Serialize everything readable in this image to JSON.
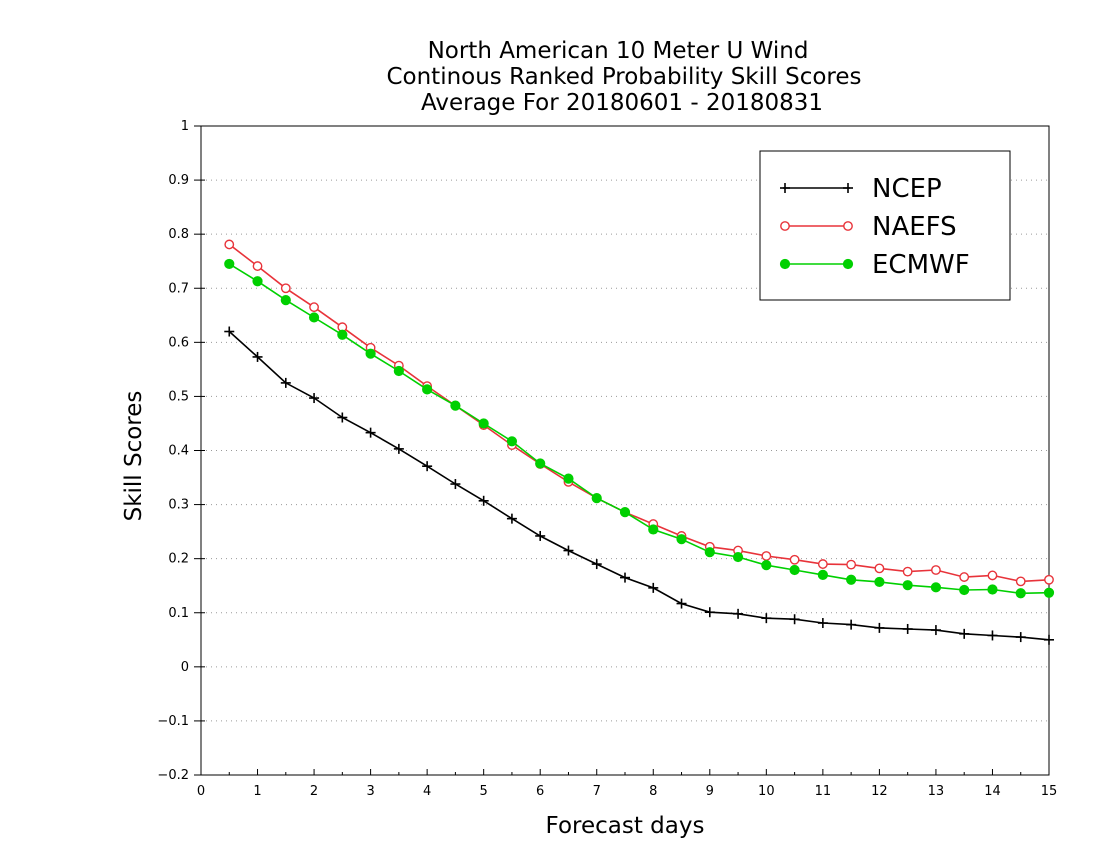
{
  "chart_data": {
    "type": "line",
    "title_lines": [
      "North American 10 Meter U Wind",
      "Continous Ranked Probability Skill Scores",
      "Average For 20180601 - 20180831"
    ],
    "xlabel": "Forecast days",
    "ylabel": "Skill Scores",
    "xlim": [
      0,
      15
    ],
    "ylim": [
      -0.2,
      1
    ],
    "x_ticks": [
      0,
      1,
      2,
      3,
      4,
      5,
      6,
      7,
      8,
      9,
      10,
      11,
      12,
      13,
      14,
      15
    ],
    "x_tick_labels": [
      "0",
      "1",
      "2",
      "3",
      "4",
      "5",
      "6",
      "7",
      "8",
      "9",
      "10",
      "11",
      "12",
      "13",
      "14",
      "15"
    ],
    "y_ticks": [
      -0.2,
      -0.1,
      0,
      0.1,
      0.2,
      0.3,
      0.4,
      0.5,
      0.6,
      0.7,
      0.8,
      0.9,
      1
    ],
    "y_tick_labels": [
      "−0.2",
      "−0.1",
      "0",
      "0.1",
      "0.2",
      "0.3",
      "0.4",
      "0.5",
      "0.6",
      "0.7",
      "0.8",
      "0.9",
      "1"
    ],
    "grid": "horizontal dotted",
    "legend_position": "top-right",
    "x": [
      0.5,
      1.0,
      1.5,
      2.0,
      2.5,
      3.0,
      3.5,
      4.0,
      4.5,
      5.0,
      5.5,
      6.0,
      6.5,
      7.0,
      7.5,
      8.0,
      8.5,
      9.0,
      9.5,
      10.0,
      10.5,
      11.0,
      11.5,
      12.0,
      12.5,
      13.0,
      13.5,
      14.0,
      14.5,
      15.0
    ],
    "series": [
      {
        "name": "NCEP",
        "color": "#000000",
        "marker": "plus",
        "values": [
          0.62,
          0.573,
          0.525,
          0.497,
          0.461,
          0.433,
          0.403,
          0.371,
          0.338,
          0.307,
          0.274,
          0.242,
          0.215,
          0.19,
          0.165,
          0.146,
          0.117,
          0.101,
          0.098,
          0.09,
          0.088,
          0.081,
          0.078,
          0.072,
          0.07,
          0.068,
          0.061,
          0.058,
          0.055,
          0.05
        ]
      },
      {
        "name": "NAEFS",
        "color": "#e8333a",
        "marker": "open-circle",
        "values": [
          0.781,
          0.741,
          0.7,
          0.665,
          0.628,
          0.59,
          0.557,
          0.519,
          0.483,
          0.447,
          0.41,
          0.375,
          0.342,
          0.312,
          0.286,
          0.264,
          0.242,
          0.222,
          0.215,
          0.205,
          0.198,
          0.19,
          0.189,
          0.182,
          0.176,
          0.179,
          0.166,
          0.169,
          0.158,
          0.161
        ]
      },
      {
        "name": "ECMWF",
        "color": "#00d000",
        "marker": "filled-circle",
        "values": [
          0.745,
          0.713,
          0.678,
          0.646,
          0.614,
          0.579,
          0.547,
          0.513,
          0.483,
          0.45,
          0.417,
          0.376,
          0.348,
          0.312,
          0.286,
          0.254,
          0.236,
          0.212,
          0.203,
          0.188,
          0.179,
          0.17,
          0.161,
          0.157,
          0.151,
          0.147,
          0.142,
          0.143,
          0.136,
          0.137
        ]
      }
    ]
  }
}
